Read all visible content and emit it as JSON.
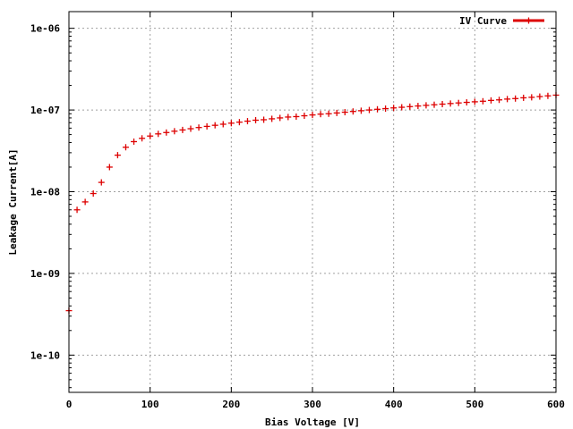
{
  "chart_data": {
    "type": "scatter",
    "title": "",
    "xlabel": "Bias Voltage [V]",
    "ylabel": "Leakage Current[A]",
    "xlim": [
      0,
      600
    ],
    "ylim": [
      3.5e-11,
      1.6e-06
    ],
    "yscale": "log",
    "grid": true,
    "legend_position": "top-right",
    "x_ticks": [
      0,
      100,
      200,
      300,
      400,
      500,
      600
    ],
    "x_tick_labels": [
      "0",
      "100",
      "200",
      "300",
      "400",
      "500",
      "600"
    ],
    "y_ticks": [
      1e-10,
      1e-09,
      1e-08,
      1e-07,
      1e-06
    ],
    "y_tick_labels": [
      "1e-10",
      "1e-09",
      "1e-08",
      "1e-07",
      "1e-06"
    ],
    "series": [
      {
        "name": "IV Curve",
        "color": "#dd0000",
        "marker": "plus",
        "x": [
          0,
          10,
          20,
          30,
          40,
          50,
          60,
          70,
          80,
          90,
          100,
          110,
          120,
          130,
          140,
          150,
          160,
          170,
          180,
          190,
          200,
          210,
          220,
          230,
          240,
          250,
          260,
          270,
          280,
          290,
          300,
          310,
          320,
          330,
          340,
          350,
          360,
          370,
          380,
          390,
          400,
          410,
          420,
          430,
          440,
          450,
          460,
          470,
          480,
          490,
          500,
          510,
          520,
          530,
          540,
          550,
          560,
          570,
          580,
          590,
          600
        ],
        "y": [
          3.5e-10,
          6e-09,
          7.5e-09,
          9.5e-09,
          1.3e-08,
          2e-08,
          2.8e-08,
          3.5e-08,
          4.1e-08,
          4.5e-08,
          4.8e-08,
          5.1e-08,
          5.3e-08,
          5.5e-08,
          5.7e-08,
          5.9e-08,
          6.1e-08,
          6.3e-08,
          6.5e-08,
          6.7e-08,
          6.9e-08,
          7.1e-08,
          7.3e-08,
          7.5e-08,
          7.6e-08,
          7.8e-08,
          8e-08,
          8.2e-08,
          8.3e-08,
          8.5e-08,
          8.7e-08,
          8.9e-08,
          9e-08,
          9.2e-08,
          9.4e-08,
          9.6e-08,
          9.8e-08,
          1e-07,
          1.02e-07,
          1.04e-07,
          1.06e-07,
          1.08e-07,
          1.1e-07,
          1.12e-07,
          1.14e-07,
          1.16e-07,
          1.18e-07,
          1.2e-07,
          1.22e-07,
          1.24e-07,
          1.26e-07,
          1.28e-07,
          1.31e-07,
          1.33e-07,
          1.36e-07,
          1.38e-07,
          1.41e-07,
          1.43e-07,
          1.46e-07,
          1.49e-07,
          1.52e-07
        ]
      }
    ]
  }
}
